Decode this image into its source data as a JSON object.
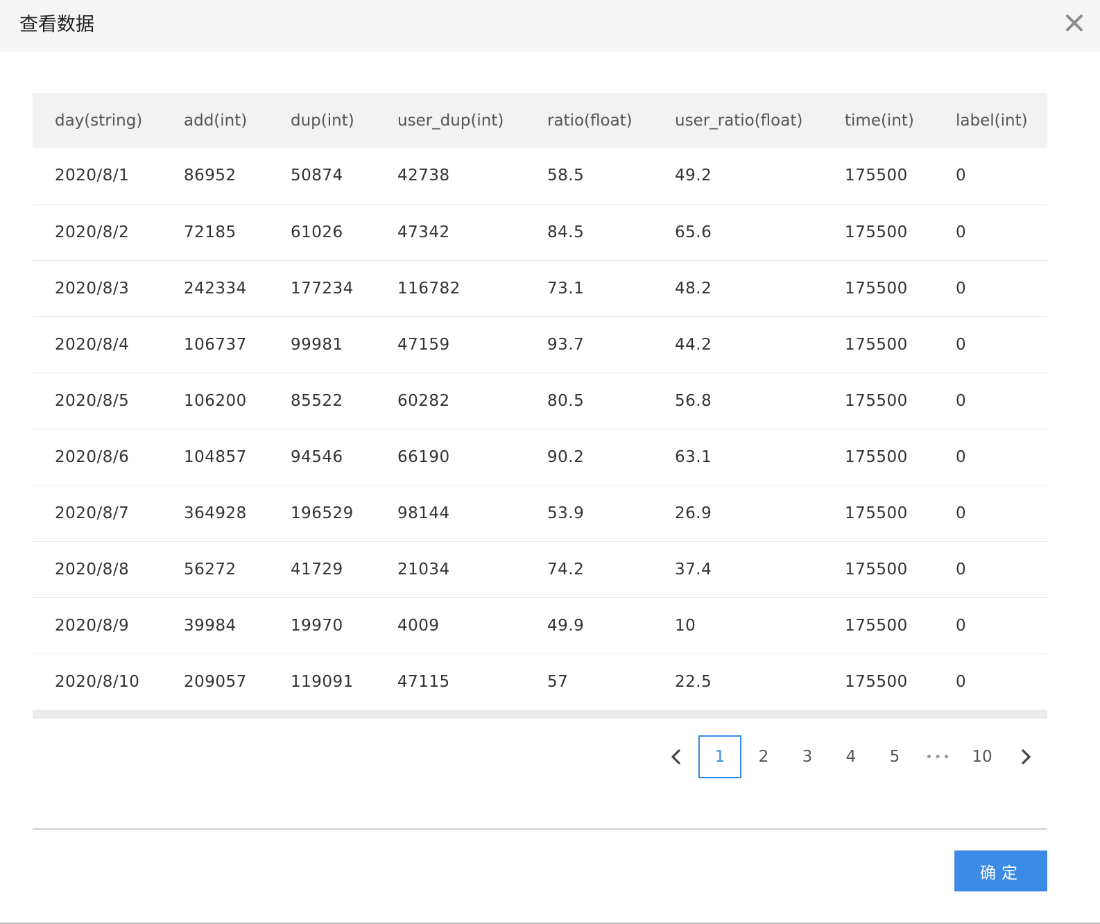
{
  "dialog": {
    "title": "查看数据",
    "close_icon": "close-icon"
  },
  "table": {
    "columns": [
      "day(string)",
      "add(int)",
      "dup(int)",
      "user_dup(int)",
      "ratio(float)",
      "user_ratio(float)",
      "time(int)",
      "label(int)"
    ],
    "rows": [
      [
        "2020/8/1",
        "86952",
        "50874",
        "42738",
        "58.5",
        "49.2",
        "175500",
        "0"
      ],
      [
        "2020/8/2",
        "72185",
        "61026",
        "47342",
        "84.5",
        "65.6",
        "175500",
        "0"
      ],
      [
        "2020/8/3",
        "242334",
        "177234",
        "116782",
        "73.1",
        "48.2",
        "175500",
        "0"
      ],
      [
        "2020/8/4",
        "106737",
        "99981",
        "47159",
        "93.7",
        "44.2",
        "175500",
        "0"
      ],
      [
        "2020/8/5",
        "106200",
        "85522",
        "60282",
        "80.5",
        "56.8",
        "175500",
        "0"
      ],
      [
        "2020/8/6",
        "104857",
        "94546",
        "66190",
        "90.2",
        "63.1",
        "175500",
        "0"
      ],
      [
        "2020/8/7",
        "364928",
        "196529",
        "98144",
        "53.9",
        "26.9",
        "175500",
        "0"
      ],
      [
        "2020/8/8",
        "56272",
        "41729",
        "21034",
        "74.2",
        "37.4",
        "175500",
        "0"
      ],
      [
        "2020/8/9",
        "39984",
        "19970",
        "4009",
        "49.9",
        "10",
        "175500",
        "0"
      ],
      [
        "2020/8/10",
        "209057",
        "119091",
        "47115",
        "57",
        "22.5",
        "175500",
        "0"
      ]
    ]
  },
  "pagination": {
    "pages": [
      "1",
      "2",
      "3",
      "4",
      "5"
    ],
    "ellipsis": "•••",
    "last_page": "10",
    "current": "1",
    "prev_icon": "chevron-left-icon",
    "next_icon": "chevron-right-icon"
  },
  "footer": {
    "ok_label": "确定"
  },
  "colors": {
    "accent": "#3b8ae6",
    "header_bg": "#f5f5f5",
    "table_header_bg": "#f2f2f2"
  }
}
